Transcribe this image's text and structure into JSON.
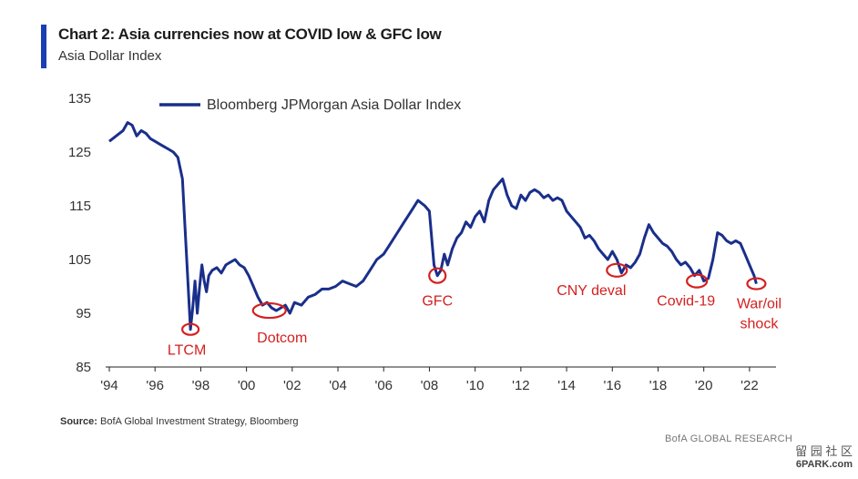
{
  "header": {
    "title": "Chart 2: Asia currencies now at COVID low & GFC low",
    "subtitle": "Asia Dollar Index"
  },
  "chart_data": {
    "type": "line",
    "title": "Chart 2: Asia currencies now at COVID low & GFC low",
    "subtitle": "Asia Dollar Index",
    "xlabel": "",
    "ylabel": "",
    "xlim": [
      1994.0,
      2023.0
    ],
    "ylim": [
      85,
      135
    ],
    "yticks": [
      85,
      95,
      105,
      115,
      125,
      135
    ],
    "xtick_values": [
      1994,
      1996,
      1998,
      2000,
      2002,
      2004,
      2006,
      2008,
      2010,
      2012,
      2014,
      2016,
      2018,
      2020,
      2022
    ],
    "xtick_labels": [
      "'94",
      "'96",
      "'98",
      "'00",
      "'02",
      "'04",
      "'06",
      "'08",
      "'10",
      "'12",
      "'14",
      "'16",
      "'18",
      "'20",
      "'22"
    ],
    "grid": false,
    "legend_position": "top-left",
    "series": [
      {
        "name": "Bloomberg JPMorgan Asia Dollar Index",
        "color": "#1a2f8a",
        "x": [
          1994.0,
          1994.3,
          1994.6,
          1994.8,
          1995.0,
          1995.2,
          1995.4,
          1995.6,
          1995.8,
          1996.0,
          1996.2,
          1996.4,
          1996.6,
          1996.8,
          1997.0,
          1997.2,
          1997.3,
          1997.45,
          1997.55,
          1997.65,
          1997.75,
          1997.85,
          1997.95,
          1998.05,
          1998.15,
          1998.25,
          1998.35,
          1998.5,
          1998.7,
          1998.9,
          1999.1,
          1999.3,
          1999.5,
          1999.7,
          1999.9,
          2000.1,
          2000.3,
          2000.5,
          2000.7,
          2000.9,
          2001.1,
          2001.3,
          2001.5,
          2001.7,
          2001.9,
          2002.1,
          2002.4,
          2002.7,
          2003.0,
          2003.3,
          2003.6,
          2003.9,
          2004.2,
          2004.5,
          2004.8,
          2005.1,
          2005.4,
          2005.7,
          2006.0,
          2006.3,
          2006.6,
          2006.9,
          2007.2,
          2007.5,
          2007.8,
          2008.0,
          2008.2,
          2008.35,
          2008.5,
          2008.65,
          2008.8,
          2009.0,
          2009.2,
          2009.4,
          2009.6,
          2009.8,
          2010.0,
          2010.2,
          2010.4,
          2010.6,
          2010.8,
          2011.0,
          2011.2,
          2011.4,
          2011.6,
          2011.8,
          2012.0,
          2012.2,
          2012.4,
          2012.6,
          2012.8,
          2013.0,
          2013.2,
          2013.4,
          2013.6,
          2013.8,
          2014.0,
          2014.2,
          2014.4,
          2014.6,
          2014.8,
          2015.0,
          2015.2,
          2015.4,
          2015.6,
          2015.8,
          2016.0,
          2016.2,
          2016.4,
          2016.6,
          2016.8,
          2017.0,
          2017.2,
          2017.4,
          2017.6,
          2017.8,
          2018.0,
          2018.2,
          2018.4,
          2018.6,
          2018.8,
          2019.0,
          2019.2,
          2019.4,
          2019.6,
          2019.8,
          2020.0,
          2020.2,
          2020.4,
          2020.6,
          2020.8,
          2021.0,
          2021.2,
          2021.4,
          2021.6,
          2021.8,
          2022.0,
          2022.2,
          2022.3
        ],
        "y": [
          127,
          128,
          129,
          130.5,
          130,
          128,
          129,
          128.5,
          127.5,
          127,
          126.5,
          126,
          125.5,
          125,
          124,
          120,
          112,
          100,
          92,
          96,
          101,
          95,
          100,
          104,
          101,
          99,
          102,
          103,
          103.5,
          102.5,
          104,
          104.5,
          105,
          104,
          103.5,
          102,
          100,
          98,
          96.5,
          97,
          96,
          95.5,
          96,
          96.5,
          95,
          97,
          96.5,
          98,
          98.5,
          99.5,
          99.5,
          100,
          101,
          100.5,
          100,
          101,
          103,
          105,
          106,
          108,
          110,
          112,
          114,
          116,
          115,
          114,
          104,
          102,
          103,
          106,
          104,
          107,
          109,
          110,
          112,
          111,
          113,
          114,
          112,
          116,
          118,
          119,
          120,
          117,
          115,
          114.5,
          117,
          116,
          117.5,
          118,
          117.5,
          116.5,
          117,
          116,
          116.5,
          116,
          114,
          113,
          112,
          111,
          109,
          109.5,
          108.5,
          107,
          106,
          105,
          106.5,
          105,
          102.5,
          104,
          103.5,
          104.5,
          106,
          109,
          111.5,
          110,
          109,
          108,
          107.5,
          106.5,
          105,
          104,
          104.5,
          103.5,
          102,
          103,
          101,
          101.5,
          105,
          110,
          109.5,
          108.5,
          108,
          108.5,
          108,
          106,
          104,
          102,
          100.5
        ]
      }
    ],
    "annotations": [
      {
        "label": "LTCM",
        "x": 1997.55,
        "y": 92
      },
      {
        "label": "Dotcom",
        "x": 2001.0,
        "y": 95.5
      },
      {
        "label": "GFC",
        "x": 2008.35,
        "y": 102
      },
      {
        "label": "CNY deval",
        "x": 2016.2,
        "y": 103
      },
      {
        "label": "Covid-19",
        "x": 2019.7,
        "y": 101
      },
      {
        "label": "War/oil shock",
        "x": 2022.3,
        "y": 100.5
      }
    ],
    "annotation_color": "#d42020"
  },
  "footer": {
    "source_label": "Source:",
    "source_text": "BofA Global Investment Strategy, Bloomberg",
    "brand": "BofA GLOBAL RESEARCH"
  },
  "watermark": {
    "top": "留 园 社 区",
    "bottom": "6PARK.com"
  }
}
